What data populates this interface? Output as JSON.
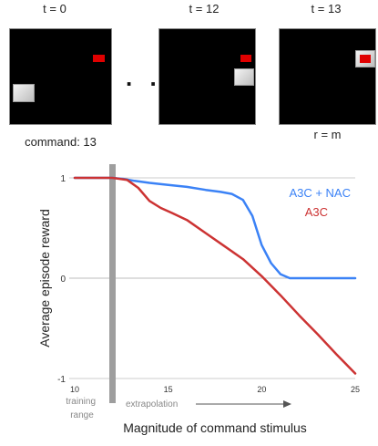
{
  "frames": [
    {
      "label": "t = 0"
    },
    {
      "label": "t = 12"
    },
    {
      "label": "t = 13"
    }
  ],
  "ellipsis": ". .",
  "captions": {
    "command": "command: 13",
    "reward": "r = m"
  },
  "colors": {
    "nac": "#3b82f6",
    "a3c": "#cc3333",
    "marker": "#9e9e9e",
    "target": "#e00000"
  },
  "chart_data": {
    "type": "line",
    "xlabel": "Magnitude of command stimulus",
    "ylabel": "Average episode reward",
    "xlim": [
      10,
      25
    ],
    "ylim": [
      -1,
      1
    ],
    "x_ticks": [
      "10",
      "15",
      "20",
      "25"
    ],
    "y_ticks": [
      "1",
      "0",
      "-1"
    ],
    "grid": "horizontal",
    "legend_placement": "top-right",
    "annotations": {
      "training": "training\nrange",
      "extrapolation": "extrapolation"
    },
    "training_range_end": 12,
    "series": [
      {
        "name": "A3C + NAC",
        "color": "#3b82f6",
        "x": [
          10,
          12,
          12.6,
          13.2,
          14,
          15,
          16,
          17,
          17.8,
          18.4,
          19,
          19.5,
          20,
          20.5,
          21,
          21.5,
          22,
          23,
          24,
          25
        ],
        "y": [
          1,
          1,
          0.99,
          0.97,
          0.95,
          0.93,
          0.91,
          0.88,
          0.86,
          0.84,
          0.78,
          0.62,
          0.33,
          0.15,
          0.04,
          0,
          0,
          0,
          0,
          0
        ]
      },
      {
        "name": "A3C",
        "color": "#cc3333",
        "x": [
          10,
          12,
          12.8,
          13.4,
          14,
          14.6,
          15.2,
          16,
          17,
          18,
          19,
          20,
          21,
          22,
          23,
          24,
          25
        ],
        "y": [
          1,
          1,
          0.98,
          0.9,
          0.77,
          0.7,
          0.65,
          0.58,
          0.45,
          0.32,
          0.19,
          0.02,
          -0.17,
          -0.37,
          -0.56,
          -0.76,
          -0.95
        ]
      }
    ]
  }
}
